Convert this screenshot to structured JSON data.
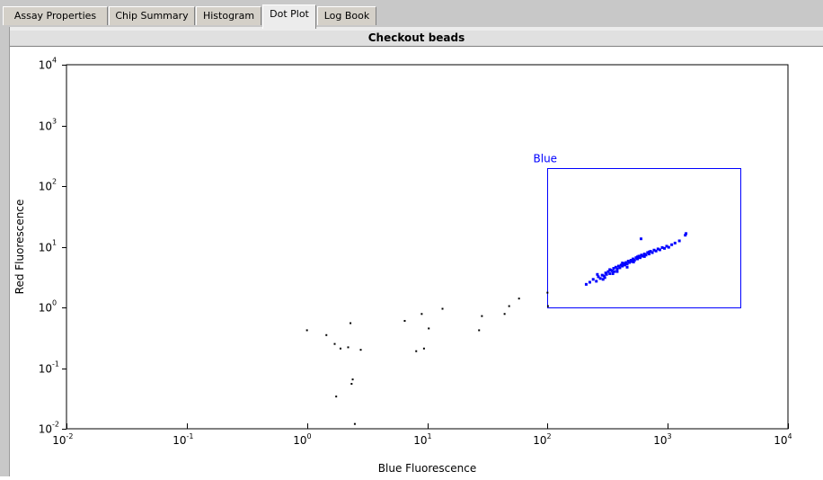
{
  "tabs": [
    {
      "label": "Assay Properties",
      "active": false
    },
    {
      "label": "Chip Summary",
      "active": false
    },
    {
      "label": "Histogram",
      "active": false
    },
    {
      "label": "Dot Plot",
      "active": true
    },
    {
      "label": "Log Book",
      "active": false
    }
  ],
  "chart_data": {
    "type": "scatter",
    "title": "Checkout beads",
    "xlabel": "Blue Fluorescence",
    "ylabel": "Red Fluorescence",
    "xscale": "log",
    "yscale": "log",
    "xlim": [
      0.01,
      10000
    ],
    "ylim": [
      0.01,
      10000
    ],
    "x_ticks": [
      {
        "base": "10",
        "exp": "-2"
      },
      {
        "base": "10",
        "exp": "-1"
      },
      {
        "base": "10",
        "exp": "0"
      },
      {
        "base": "10",
        "exp": "1"
      },
      {
        "base": "10",
        "exp": "2"
      },
      {
        "base": "10",
        "exp": "3"
      },
      {
        "base": "10",
        "exp": "4"
      }
    ],
    "y_ticks": [
      {
        "base": "10",
        "exp": "-2"
      },
      {
        "base": "10",
        "exp": "-1"
      },
      {
        "base": "10",
        "exp": "0"
      },
      {
        "base": "10",
        "exp": "1"
      },
      {
        "base": "10",
        "exp": "2"
      },
      {
        "base": "10",
        "exp": "3"
      },
      {
        "base": "10",
        "exp": "4"
      }
    ],
    "grid": false,
    "gate": {
      "label": "Blue",
      "color": "#0000ff",
      "x_range": [
        100,
        4000
      ],
      "y_range": [
        1,
        200
      ]
    },
    "series": [
      {
        "color": "#000000",
        "points": [
          [
            1.0,
            0.42
          ],
          [
            1.45,
            0.35
          ],
          [
            1.7,
            0.25
          ],
          [
            1.9,
            0.21
          ],
          [
            2.2,
            0.22
          ],
          [
            2.3,
            0.55
          ],
          [
            2.8,
            0.2
          ],
          [
            1.75,
            0.034
          ],
          [
            2.35,
            0.055
          ],
          [
            2.4,
            0.065
          ],
          [
            2.5,
            0.012
          ],
          [
            6.5,
            0.6
          ],
          [
            8.1,
            0.19
          ],
          [
            9.0,
            0.78
          ],
          [
            9.4,
            0.21
          ],
          [
            10.3,
            0.45
          ],
          [
            13.4,
            0.95
          ],
          [
            27.0,
            0.42
          ],
          [
            28.5,
            0.72
          ],
          [
            44.0,
            0.78
          ],
          [
            48.0,
            1.05
          ],
          [
            58.0,
            1.4
          ],
          [
            100.0,
            1.75
          ],
          [
            101.0,
            1.05
          ]
        ]
      },
      {
        "name": "Blue",
        "color": "#0000ff",
        "points": [
          [
            210,
            2.4
          ],
          [
            225,
            2.6
          ],
          [
            240,
            2.9
          ],
          [
            255,
            2.7
          ],
          [
            265,
            3.2
          ],
          [
            275,
            3.0
          ],
          [
            285,
            3.4
          ],
          [
            295,
            3.3
          ],
          [
            305,
            3.7
          ],
          [
            310,
            3.5
          ],
          [
            320,
            3.9
          ],
          [
            330,
            3.6
          ],
          [
            335,
            4.1
          ],
          [
            345,
            4.0
          ],
          [
            355,
            4.4
          ],
          [
            360,
            3.9
          ],
          [
            370,
            4.6
          ],
          [
            380,
            4.3
          ],
          [
            390,
            4.8
          ],
          [
            400,
            4.5
          ],
          [
            410,
            5.0
          ],
          [
            420,
            4.8
          ],
          [
            430,
            5.3
          ],
          [
            440,
            5.0
          ],
          [
            450,
            5.5
          ],
          [
            460,
            5.2
          ],
          [
            470,
            5.8
          ],
          [
            480,
            5.5
          ],
          [
            495,
            6.0
          ],
          [
            505,
            5.7
          ],
          [
            515,
            6.3
          ],
          [
            530,
            6.0
          ],
          [
            545,
            6.6
          ],
          [
            560,
            6.3
          ],
          [
            575,
            7.0
          ],
          [
            590,
            6.6
          ],
          [
            605,
            7.3
          ],
          [
            620,
            7.0
          ],
          [
            640,
            7.6
          ],
          [
            660,
            7.3
          ],
          [
            680,
            8.0
          ],
          [
            700,
            7.6
          ],
          [
            720,
            8.4
          ],
          [
            745,
            8.0
          ],
          [
            770,
            8.8
          ],
          [
            800,
            8.5
          ],
          [
            830,
            9.2
          ],
          [
            860,
            8.9
          ],
          [
            900,
            9.7
          ],
          [
            940,
            9.4
          ],
          [
            980,
            10.2
          ],
          [
            1020,
            9.8
          ],
          [
            1080,
            10.8
          ],
          [
            1150,
            11.5
          ],
          [
            1250,
            12.5
          ],
          [
            1400,
            15.5
          ],
          [
            1420,
            16.5
          ],
          [
            600,
            13.5
          ],
          [
            350,
            3.6
          ],
          [
            420,
            5.4
          ],
          [
            380,
            3.9
          ],
          [
            460,
            4.6
          ],
          [
            520,
            5.6
          ],
          [
            560,
            6.8
          ],
          [
            640,
            6.9
          ],
          [
            700,
            8.2
          ],
          [
            300,
            3.1
          ],
          [
            330,
            4.2
          ],
          [
            290,
            2.9
          ],
          [
            260,
            3.5
          ]
        ]
      }
    ]
  }
}
